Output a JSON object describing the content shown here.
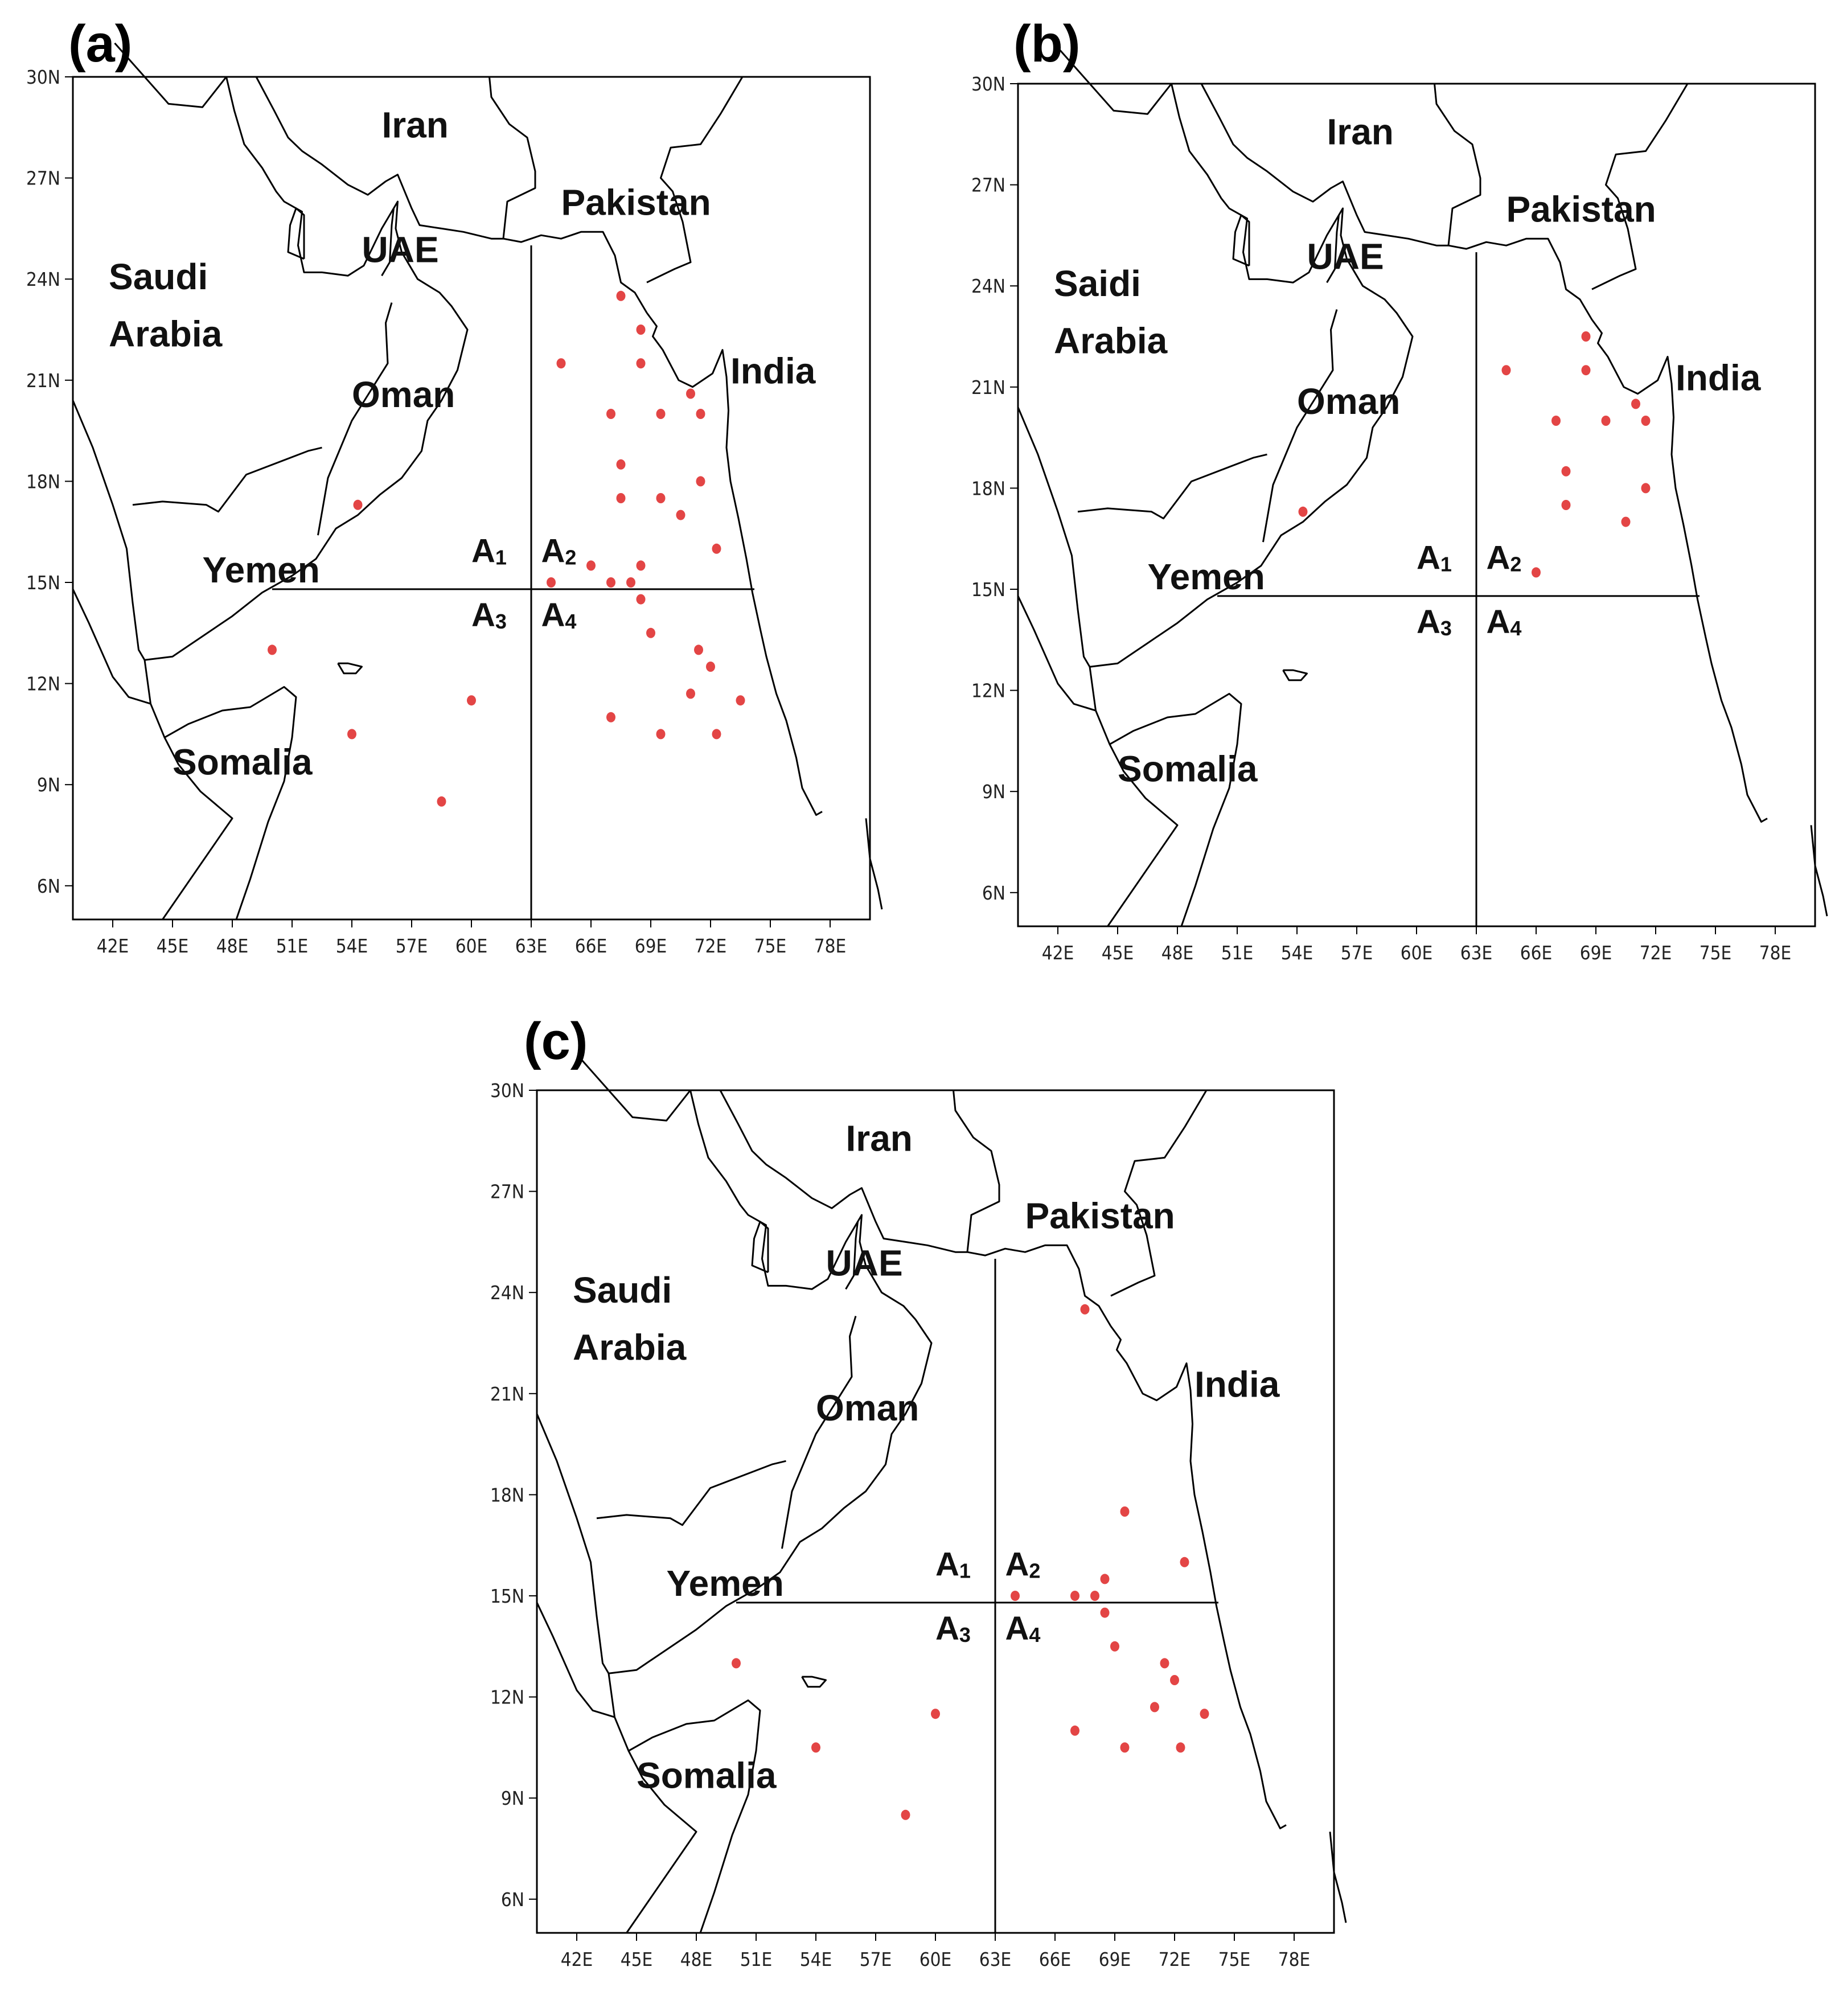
{
  "colors": {
    "point": "#e34545",
    "line": "#000000",
    "background": "#ffffff"
  },
  "axes": {
    "lon_ticks": [
      "42E",
      "45E",
      "48E",
      "51E",
      "54E",
      "57E",
      "60E",
      "63E",
      "66E",
      "69E",
      "72E",
      "75E",
      "78E"
    ],
    "lat_ticks": [
      "30N",
      "27N",
      "24N",
      "21N",
      "18N",
      "15N",
      "12N",
      "9N",
      "6N"
    ],
    "lon_range": [
      40,
      80
    ],
    "lat_range": [
      5,
      30
    ],
    "divider_lon": 63,
    "divider_lat": 14.8
  },
  "panels": [
    {
      "key": "a",
      "label": "(a)",
      "countries": {
        "iran": "Iran",
        "pakistan": "Pakistan",
        "uae": "UAE",
        "saudi1": "Saudi",
        "saudi2": "Arabia",
        "oman": "Oman",
        "india": "India",
        "yemen": "Yemen",
        "somalia": "Somalia"
      },
      "areas": {
        "a1": "A",
        "a1s": "1",
        "a2": "A",
        "a2s": "2",
        "a3": "A",
        "a3s": "3",
        "a4": "A",
        "a4s": "4"
      },
      "points": [
        [
          54.3,
          17.3
        ],
        [
          50.0,
          13.0
        ],
        [
          54.0,
          10.5
        ],
        [
          60.0,
          11.5
        ],
        [
          58.5,
          8.5
        ],
        [
          64.5,
          21.5
        ],
        [
          67.5,
          23.5
        ],
        [
          68.5,
          22.5
        ],
        [
          68.5,
          21.5
        ],
        [
          67.0,
          20.0
        ],
        [
          69.5,
          20.0
        ],
        [
          71.0,
          20.6
        ],
        [
          71.5,
          20.0
        ],
        [
          67.5,
          18.5
        ],
        [
          67.5,
          17.5
        ],
        [
          69.5,
          17.5
        ],
        [
          71.5,
          18.0
        ],
        [
          70.5,
          17.0
        ],
        [
          72.3,
          16.0
        ],
        [
          66.0,
          15.5
        ],
        [
          68.5,
          15.5
        ],
        [
          64.0,
          15.0
        ],
        [
          67.0,
          15.0
        ],
        [
          68.0,
          15.0
        ],
        [
          68.5,
          14.5
        ],
        [
          69.0,
          13.5
        ],
        [
          71.4,
          13.0
        ],
        [
          72.0,
          12.5
        ],
        [
          71.0,
          11.7
        ],
        [
          73.5,
          11.5
        ],
        [
          67.0,
          11.0
        ],
        [
          69.5,
          10.5
        ],
        [
          72.3,
          10.5
        ]
      ]
    },
    {
      "key": "b",
      "label": "(b)",
      "countries": {
        "iran": "Iran",
        "pakistan": "Pakistan",
        "uae": "UAE",
        "saudi1": "Saidi",
        "saudi2": "Arabia",
        "oman": "Oman",
        "india": "India",
        "yemen": "Yemen",
        "somalia": "Somalia"
      },
      "areas": {
        "a1": "A",
        "a1s": "1",
        "a2": "A",
        "a2s": "2",
        "a3": "A",
        "a3s": "3",
        "a4": "A",
        "a4s": "4"
      },
      "points": [
        [
          54.3,
          17.3
        ],
        [
          64.5,
          21.5
        ],
        [
          68.5,
          22.5
        ],
        [
          68.5,
          21.5
        ],
        [
          67.0,
          20.0
        ],
        [
          69.5,
          20.0
        ],
        [
          71.0,
          20.5
        ],
        [
          71.5,
          20.0
        ],
        [
          67.5,
          18.5
        ],
        [
          67.5,
          17.5
        ],
        [
          71.5,
          18.0
        ],
        [
          70.5,
          17.0
        ],
        [
          66.0,
          15.5
        ]
      ]
    },
    {
      "key": "c",
      "label": "(c)",
      "countries": {
        "iran": "Iran",
        "pakistan": "Pakistan",
        "uae": "UAE",
        "saudi1": "Saudi",
        "saudi2": "Arabia",
        "oman": "Oman",
        "india": "India",
        "yemen": "Yemen",
        "somalia": "Somalia"
      },
      "areas": {
        "a1": "A",
        "a1s": "1",
        "a2": "A",
        "a2s": "2",
        "a3": "A",
        "a3s": "3",
        "a4": "A",
        "a4s": "4"
      },
      "points": [
        [
          67.5,
          23.5
        ],
        [
          69.5,
          17.5
        ],
        [
          72.5,
          16.0
        ],
        [
          64.0,
          15.0
        ],
        [
          67.0,
          15.0
        ],
        [
          68.0,
          15.0
        ],
        [
          68.5,
          15.5
        ],
        [
          68.5,
          14.5
        ],
        [
          69.0,
          13.5
        ],
        [
          71.5,
          13.0
        ],
        [
          72.0,
          12.5
        ],
        [
          71.0,
          11.7
        ],
        [
          73.5,
          11.5
        ],
        [
          67.0,
          11.0
        ],
        [
          69.5,
          10.5
        ],
        [
          72.3,
          10.5
        ],
        [
          50.0,
          13.0
        ],
        [
          54.0,
          10.5
        ],
        [
          60.0,
          11.5
        ],
        [
          58.5,
          8.5
        ]
      ]
    }
  ]
}
